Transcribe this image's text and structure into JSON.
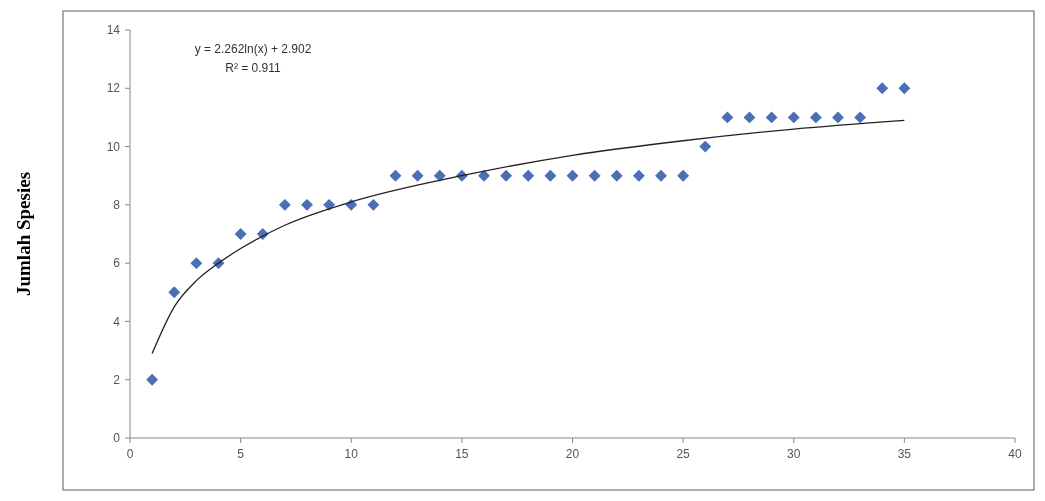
{
  "chart_data": {
    "type": "scatter",
    "ylabel": "Jumlah Spesies",
    "annotations": [
      "y = 2.262ln(x) + 2.902",
      "R² = 0.911"
    ],
    "xlim": [
      0,
      40
    ],
    "ylim": [
      0,
      14
    ],
    "xticks": [
      0,
      5,
      10,
      15,
      20,
      25,
      30,
      35,
      40
    ],
    "yticks": [
      0,
      2,
      4,
      6,
      8,
      10,
      12,
      14
    ],
    "grid": false,
    "x": [
      1,
      2,
      3,
      4,
      5,
      6,
      7,
      8,
      9,
      10,
      11,
      12,
      13,
      14,
      15,
      16,
      17,
      18,
      19,
      20,
      21,
      22,
      23,
      24,
      25,
      26,
      27,
      28,
      29,
      30,
      31,
      32,
      33,
      34,
      35
    ],
    "series": [
      {
        "marker": "diamond",
        "color": "#4a6fb5",
        "values": [
          2,
          5,
          6,
          6,
          7,
          7,
          8,
          8,
          8,
          8,
          8,
          9,
          9,
          9,
          9,
          9,
          9,
          9,
          9,
          9,
          9,
          9,
          9,
          9,
          9,
          10,
          11,
          11,
          11,
          11,
          11,
          11,
          11,
          12,
          12
        ]
      },
      {
        "type": "line",
        "color": "#222222",
        "x": [
          1,
          2,
          3,
          4,
          5,
          7,
          10,
          15,
          20,
          25,
          30,
          35
        ],
        "values": [
          2.9,
          4.5,
          5.4,
          6.0,
          6.5,
          7.3,
          8.1,
          9.0,
          9.7,
          10.2,
          10.6,
          10.9
        ]
      }
    ]
  }
}
